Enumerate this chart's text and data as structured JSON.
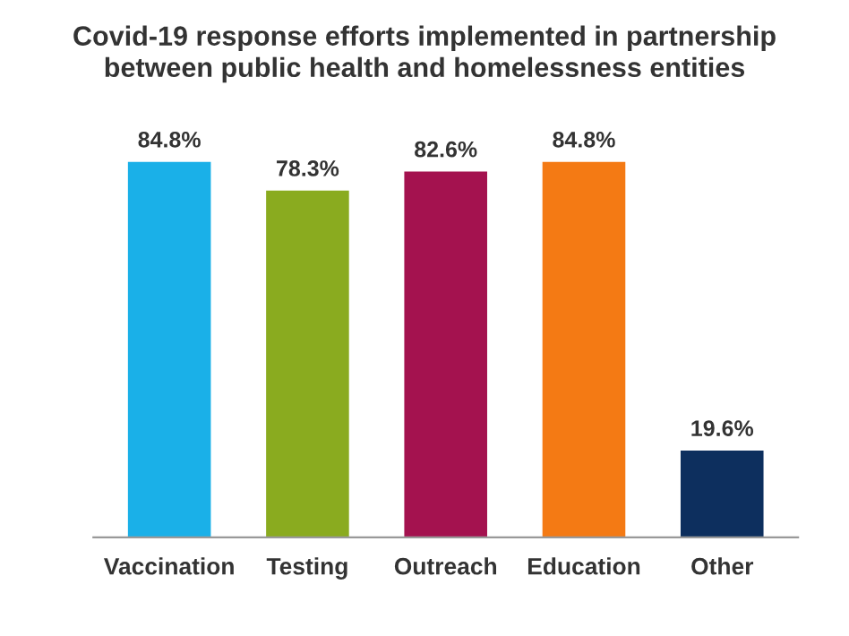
{
  "chart_data": {
    "type": "bar",
    "title": "Covid-19 response efforts implemented in partnership\nbetween public health and homelessness entities",
    "categories": [
      "Vaccination",
      "Testing",
      "Outreach",
      "Education",
      "Other"
    ],
    "values": [
      84.8,
      78.3,
      82.6,
      84.8,
      19.6
    ],
    "colors": [
      "#1ab0e8",
      "#8aab1f",
      "#a4124f",
      "#f47a14",
      "#0d2f5e"
    ],
    "value_labels": [
      "84.8%",
      "78.3%",
      "82.6%",
      "84.8%",
      "19.6%"
    ],
    "grid": false,
    "legend": false,
    "tick_labels": "x"
  }
}
